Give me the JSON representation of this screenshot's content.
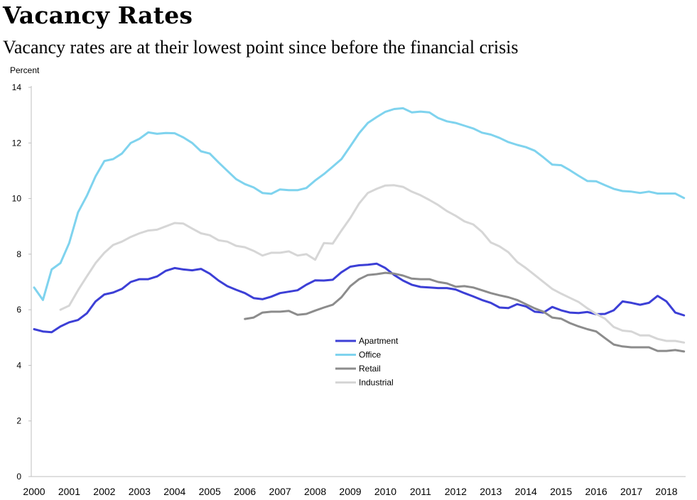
{
  "header": {
    "title": "Vacancy Rates",
    "subtitle": "Vacancy rates are at their lowest point since before the financial crisis",
    "unit": "Percent"
  },
  "chart_data": {
    "type": "line",
    "ylabel": "Percent",
    "ylim": [
      0,
      14
    ],
    "yticks": [
      0,
      2,
      4,
      6,
      8,
      10,
      12,
      14
    ],
    "xlim": [
      2000,
      2018.75
    ],
    "xticks": [
      "2000",
      "2001",
      "2002",
      "2003",
      "2004",
      "2005",
      "2006",
      "2007",
      "2008",
      "2009",
      "2010",
      "2011",
      "2012",
      "2013",
      "2014",
      "2015",
      "2016",
      "2017",
      "2018"
    ],
    "grid": false,
    "legend_position": "center-right",
    "series": [
      {
        "name": "Apartment",
        "color": "#3c3fd6",
        "x": [
          2000,
          2000.25,
          2000.5,
          2000.75,
          2001,
          2001.25,
          2001.5,
          2001.75,
          2002,
          2002.25,
          2002.5,
          2002.75,
          2003,
          2003.25,
          2003.5,
          2003.75,
          2004,
          2004.25,
          2004.5,
          2004.75,
          2005,
          2005.25,
          2005.5,
          2005.75,
          2006,
          2006.25,
          2006.5,
          2006.75,
          2007,
          2007.25,
          2007.5,
          2007.75,
          2008,
          2008.25,
          2008.5,
          2008.75,
          2009,
          2009.25,
          2009.5,
          2009.75,
          2010,
          2010.25,
          2010.5,
          2010.75,
          2011,
          2011.25,
          2011.5,
          2011.75,
          2012,
          2012.25,
          2012.5,
          2012.75,
          2013,
          2013.25,
          2013.5,
          2013.75,
          2014,
          2014.25,
          2014.5,
          2014.75,
          2015,
          2015.25,
          2015.5,
          2015.75,
          2016,
          2016.25,
          2016.5,
          2016.75,
          2017,
          2017.25,
          2017.5,
          2017.75,
          2018,
          2018.25,
          2018.5
        ],
        "values": [
          5.3,
          5.22,
          5.19,
          5.4,
          5.55,
          5.63,
          5.87,
          6.3,
          6.55,
          6.62,
          6.75,
          7.0,
          7.1,
          7.1,
          7.2,
          7.4,
          7.5,
          7.45,
          7.42,
          7.47,
          7.3,
          7.05,
          6.85,
          6.72,
          6.6,
          6.42,
          6.38,
          6.47,
          6.6,
          6.65,
          6.7,
          6.9,
          7.06,
          7.05,
          7.08,
          7.35,
          7.55,
          7.6,
          7.62,
          7.66,
          7.5,
          7.25,
          7.05,
          6.9,
          6.82,
          6.8,
          6.78,
          6.78,
          6.73,
          6.6,
          6.48,
          6.35,
          6.25,
          6.08,
          6.06,
          6.2,
          6.12,
          5.93,
          5.9,
          6.1,
          5.98,
          5.9,
          5.88,
          5.92,
          5.84,
          5.85,
          5.98,
          6.3,
          6.25,
          6.18,
          6.25,
          6.5,
          6.3,
          5.9,
          5.8
        ]
      },
      {
        "name": "Office",
        "color": "#7fd3ee",
        "x": [
          2000,
          2000.25,
          2000.5,
          2000.75,
          2001,
          2001.25,
          2001.5,
          2001.75,
          2002,
          2002.25,
          2002.5,
          2002.75,
          2003,
          2003.25,
          2003.5,
          2003.75,
          2004,
          2004.25,
          2004.5,
          2004.75,
          2005,
          2005.25,
          2005.5,
          2005.75,
          2006,
          2006.25,
          2006.5,
          2006.75,
          2007,
          2007.25,
          2007.5,
          2007.75,
          2008,
          2008.25,
          2008.5,
          2008.75,
          2009,
          2009.25,
          2009.5,
          2009.75,
          2010,
          2010.25,
          2010.5,
          2010.75,
          2011,
          2011.25,
          2011.5,
          2011.75,
          2012,
          2012.25,
          2012.5,
          2012.75,
          2013,
          2013.25,
          2013.5,
          2013.75,
          2014,
          2014.25,
          2014.5,
          2014.75,
          2015,
          2015.25,
          2015.5,
          2015.75,
          2016,
          2016.25,
          2016.5,
          2016.75,
          2017,
          2017.25,
          2017.5,
          2017.75,
          2018,
          2018.25,
          2018.5
        ],
        "values": [
          6.8,
          6.35,
          7.45,
          7.68,
          8.4,
          9.5,
          10.1,
          10.8,
          11.35,
          11.42,
          11.62,
          12.0,
          12.15,
          12.38,
          12.33,
          12.36,
          12.35,
          12.2,
          12.0,
          11.7,
          11.62,
          11.3,
          11.0,
          10.7,
          10.52,
          10.4,
          10.2,
          10.17,
          10.33,
          10.3,
          10.3,
          10.38,
          10.65,
          10.88,
          11.15,
          11.42,
          11.88,
          12.35,
          12.72,
          12.93,
          13.12,
          13.22,
          13.25,
          13.1,
          13.13,
          13.1,
          12.9,
          12.78,
          12.72,
          12.62,
          12.52,
          12.37,
          12.3,
          12.18,
          12.03,
          11.93,
          11.85,
          11.72,
          11.48,
          11.22,
          11.2,
          11.02,
          10.82,
          10.63,
          10.62,
          10.48,
          10.35,
          10.27,
          10.25,
          10.2,
          10.25,
          10.18,
          10.18,
          10.18,
          10.02
        ]
      },
      {
        "name": "Retail",
        "color": "#8c8c8c",
        "x": [
          2006,
          2006.25,
          2006.5,
          2006.75,
          2007,
          2007.25,
          2007.5,
          2007.75,
          2008,
          2008.25,
          2008.5,
          2008.75,
          2009,
          2009.25,
          2009.5,
          2009.75,
          2010,
          2010.25,
          2010.5,
          2010.75,
          2011,
          2011.25,
          2011.5,
          2011.75,
          2012,
          2012.25,
          2012.5,
          2012.75,
          2013,
          2013.25,
          2013.5,
          2013.75,
          2014,
          2014.25,
          2014.5,
          2014.75,
          2015,
          2015.25,
          2015.5,
          2015.75,
          2016,
          2016.25,
          2016.5,
          2016.75,
          2017,
          2017.25,
          2017.5,
          2017.75,
          2018,
          2018.25,
          2018.5
        ],
        "values": [
          5.67,
          5.72,
          5.9,
          5.93,
          5.93,
          5.96,
          5.82,
          5.85,
          5.97,
          6.08,
          6.18,
          6.45,
          6.85,
          7.1,
          7.25,
          7.28,
          7.33,
          7.3,
          7.23,
          7.12,
          7.1,
          7.1,
          7.0,
          6.95,
          6.83,
          6.85,
          6.8,
          6.7,
          6.6,
          6.52,
          6.45,
          6.35,
          6.2,
          6.05,
          5.93,
          5.72,
          5.68,
          5.52,
          5.4,
          5.3,
          5.22,
          4.98,
          4.75,
          4.68,
          4.65,
          4.65,
          4.65,
          4.52,
          4.52,
          4.55,
          4.5
        ]
      },
      {
        "name": "Industrial",
        "color": "#d6d6d6",
        "x": [
          2000.75,
          2001,
          2001.25,
          2001.5,
          2001.75,
          2002,
          2002.25,
          2002.5,
          2002.75,
          2003,
          2003.25,
          2003.5,
          2003.75,
          2004,
          2004.25,
          2004.5,
          2004.75,
          2005,
          2005.25,
          2005.5,
          2005.75,
          2006,
          2006.25,
          2006.5,
          2006.75,
          2007,
          2007.25,
          2007.5,
          2007.75,
          2008,
          2008.25,
          2008.5,
          2008.75,
          2009,
          2009.25,
          2009.5,
          2009.75,
          2010,
          2010.25,
          2010.5,
          2010.75,
          2011,
          2011.25,
          2011.5,
          2011.75,
          2012,
          2012.25,
          2012.5,
          2012.75,
          2013,
          2013.25,
          2013.5,
          2013.75,
          2014,
          2014.25,
          2014.5,
          2014.75,
          2015,
          2015.25,
          2015.5,
          2015.75,
          2016,
          2016.25,
          2016.5,
          2016.75,
          2017,
          2017.25,
          2017.5,
          2017.75,
          2018,
          2018.25,
          2018.5
        ],
        "values": [
          6.0,
          6.15,
          6.7,
          7.2,
          7.68,
          8.05,
          8.33,
          8.45,
          8.62,
          8.75,
          8.85,
          8.88,
          9.0,
          9.12,
          9.1,
          8.92,
          8.75,
          8.68,
          8.5,
          8.45,
          8.3,
          8.25,
          8.12,
          7.95,
          8.05,
          8.05,
          8.1,
          7.95,
          8.0,
          7.8,
          8.4,
          8.38,
          8.85,
          9.3,
          9.82,
          10.2,
          10.35,
          10.47,
          10.48,
          10.42,
          10.25,
          10.12,
          9.95,
          9.77,
          9.55,
          9.38,
          9.18,
          9.07,
          8.8,
          8.42,
          8.28,
          8.07,
          7.72,
          7.5,
          7.25,
          7.0,
          6.75,
          6.58,
          6.43,
          6.28,
          6.05,
          5.85,
          5.68,
          5.38,
          5.25,
          5.22,
          5.08,
          5.08,
          4.95,
          4.88,
          4.88,
          4.82
        ]
      }
    ]
  }
}
